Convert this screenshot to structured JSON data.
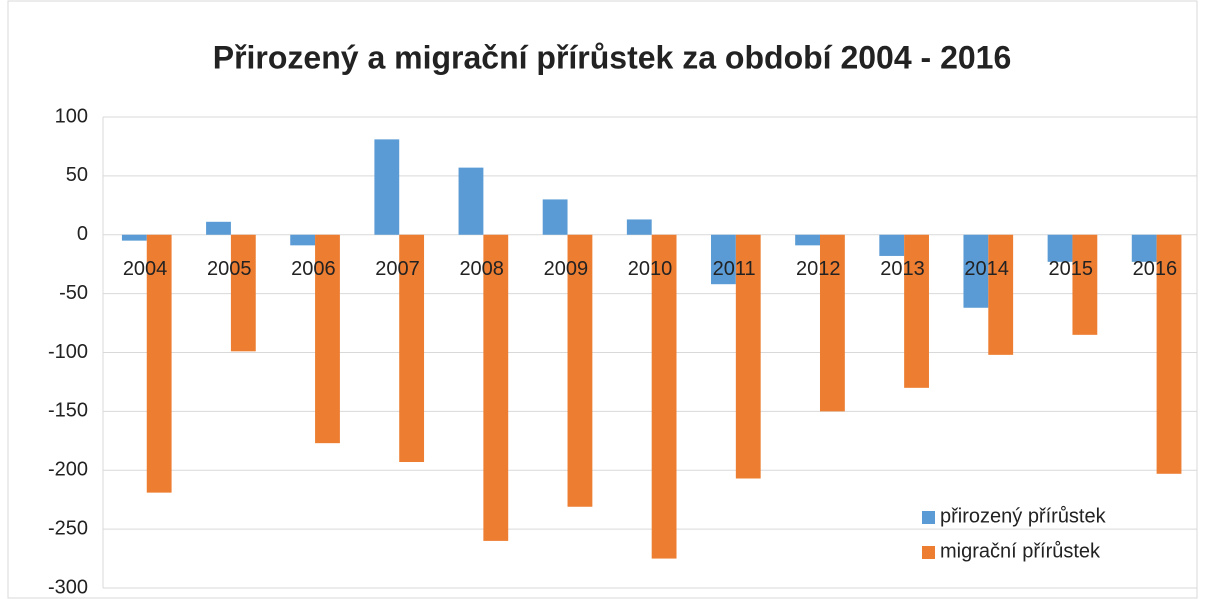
{
  "chart_data": {
    "type": "bar",
    "title": "Přirozený a migrační přírůstek za období 2004 - 2016",
    "categories": [
      "2004",
      "2005",
      "2006",
      "2007",
      "2008",
      "2009",
      "2010",
      "2011",
      "2012",
      "2013",
      "2014",
      "2015",
      "2016"
    ],
    "series": [
      {
        "name": "přirozený přírůstek",
        "color": "#5b9bd5",
        "values": [
          -5,
          11,
          -9,
          81,
          57,
          30,
          13,
          -42,
          -9,
          -18,
          -62,
          -23,
          -23
        ]
      },
      {
        "name": "migrační přírůstek",
        "color": "#ed7d31",
        "values": [
          -219,
          -99,
          -177,
          -193,
          -260,
          -231,
          -275,
          -207,
          -150,
          -130,
          -102,
          -85,
          -203
        ]
      }
    ],
    "ylim": [
      -300,
      100
    ],
    "yticks": [
      -300,
      -250,
      -200,
      -150,
      -100,
      -50,
      0,
      50,
      100
    ],
    "grid": true,
    "legend": "lower right"
  }
}
